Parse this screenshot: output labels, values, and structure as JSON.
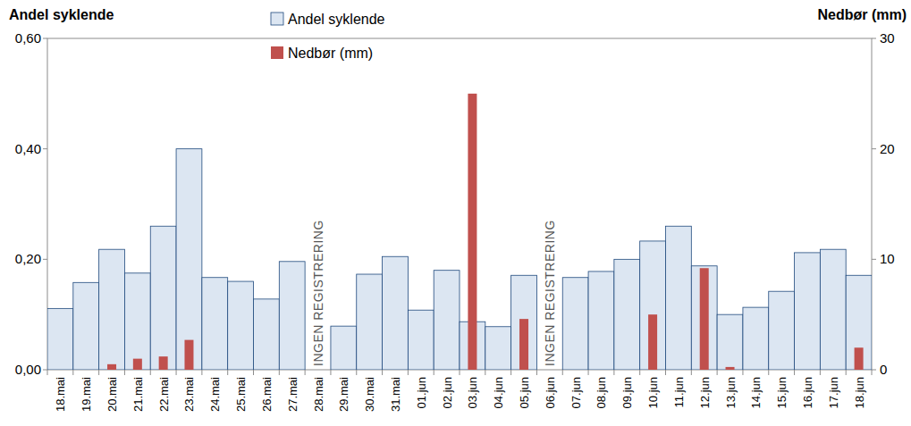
{
  "chart_data": {
    "type": "bar",
    "y_label": "Andel syklende",
    "y2_label": "Nedbør (mm)",
    "categories": [
      "18.mai",
      "19.mai",
      "20.mai",
      "21.mai",
      "22.mai",
      "23.mai",
      "24.mai",
      "25.mai",
      "26.mai",
      "27.mai",
      "28.mai",
      "29.mai",
      "30.mai",
      "31.mai",
      "01.jun",
      "02.jun",
      "03.jun",
      "04.jun",
      "05.jun",
      "06.jun",
      "07.jun",
      "08.jun",
      "09.jun",
      "10.jun",
      "11.jun",
      "12.jun",
      "13.jun",
      "14.jun",
      "15.jun",
      "16.jun",
      "17.jun",
      "18.jun"
    ],
    "series": [
      {
        "name": "Andel syklende",
        "color": "#dce6f2",
        "axis": "y",
        "values": [
          0.111,
          0.158,
          0.218,
          0.175,
          0.26,
          0.4,
          0.167,
          0.16,
          0.128,
          0.196,
          null,
          0.079,
          0.173,
          0.205,
          0.108,
          0.18,
          0.087,
          0.078,
          0.171,
          null,
          0.167,
          0.178,
          0.2,
          0.233,
          0.26,
          0.188,
          0.1,
          0.113,
          0.142,
          0.212,
          0.218,
          0.171
        ]
      },
      {
        "name": "Nedbør (mm)",
        "color": "#c0504d",
        "axis": "y2",
        "values": [
          0,
          0,
          0.5,
          1.0,
          1.2,
          2.7,
          0,
          0,
          0,
          0,
          0,
          0,
          0,
          0,
          0,
          0,
          25.0,
          0,
          4.6,
          null,
          0,
          0,
          0,
          5.0,
          0,
          9.2,
          0.25,
          0,
          0,
          0,
          0,
          2.0
        ]
      }
    ],
    "ylim": [
      0,
      0.6
    ],
    "yticks": [
      {
        "value": 0,
        "label": "0,00"
      },
      {
        "value": 0.2,
        "label": "0,20"
      },
      {
        "value": 0.4,
        "label": "0,40"
      },
      {
        "value": 0.6,
        "label": "0,60"
      }
    ],
    "y2lim": [
      0,
      30
    ],
    "y2ticks": [
      0,
      10,
      20,
      30
    ],
    "grid": false,
    "legend": "top",
    "annotations": [
      {
        "text": "INGEN REGISTRERING",
        "category": "28.mai"
      },
      {
        "text": "INGEN REGISTRERING",
        "category": "06.jun"
      }
    ]
  }
}
